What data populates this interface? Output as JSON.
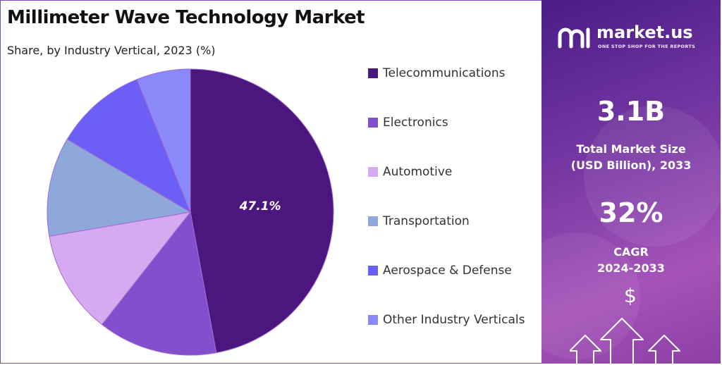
{
  "header": {
    "title": "Millimeter Wave Technology Market",
    "subtitle": "Share, by Industry Vertical, 2023 (%)"
  },
  "chart_data": {
    "type": "pie",
    "title": "Millimeter Wave Technology Market",
    "subtitle": "Share, by Industry Vertical, 2023 (%)",
    "categories": [
      "Telecommunications",
      "Electronics",
      "Automotive",
      "Transportation",
      "Aerospace & Defense",
      "Other Industry Verticals"
    ],
    "values": [
      47.1,
      13.5,
      11.7,
      11.2,
      10.4,
      6.1
    ],
    "colors": [
      "#4b167d",
      "#8250cc",
      "#d7a9f0",
      "#8fa8dc",
      "#6c5ff5",
      "#8a89fa"
    ],
    "data_labels": [
      "47.1%",
      "",
      "",
      "",
      "",
      ""
    ],
    "legend_position": "right",
    "start_angle": "top, clockwise"
  },
  "legend": {
    "items": [
      {
        "label": "Telecommunications",
        "color": "#4b167d"
      },
      {
        "label": "Electronics",
        "color": "#8250cc"
      },
      {
        "label": "Automotive",
        "color": "#d7a9f0"
      },
      {
        "label": "Transportation",
        "color": "#8fa8dc"
      },
      {
        "label": "Aerospace & Defense",
        "color": "#6c5ff5"
      },
      {
        "label": "Other Industry Verticals",
        "color": "#8a89fa"
      }
    ]
  },
  "panel": {
    "brand": "market.us",
    "tagline": "ONE STOP SHOP FOR THE REPORTS",
    "market_size_value": "3.1B",
    "market_size_label_line1": "Total Market Size",
    "market_size_label_line2": "(USD Billion), 2033",
    "cagr_value": "32%",
    "cagr_label_line1": "CAGR",
    "cagr_label_line2": "2024-2033",
    "dollar_symbol": "$",
    "icons": [
      "market-us-logo-icon",
      "dollar-icon",
      "up-arrow-icon"
    ]
  }
}
